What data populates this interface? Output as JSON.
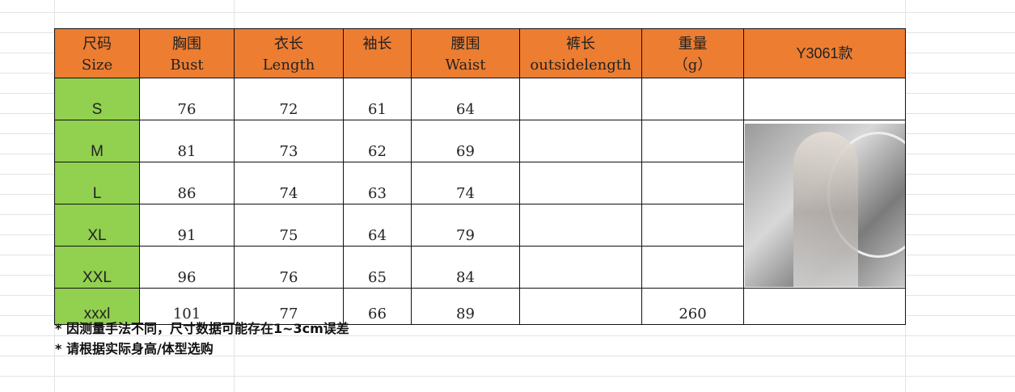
{
  "headers": [
    {
      "zh": "尺码",
      "en": "Size"
    },
    {
      "zh": "胸围",
      "en": "Bust"
    },
    {
      "zh": "衣长",
      "en": "Length"
    },
    {
      "zh": "袖长",
      "en": ""
    },
    {
      "zh": "腰围",
      "en": "Waist"
    },
    {
      "zh": "裤长",
      "en": "outsidelength"
    },
    {
      "zh": "重量",
      "en": "（g）"
    },
    {
      "zh": "Y3061款",
      "en": ""
    }
  ],
  "rows": [
    {
      "size": "S",
      "bust": "76",
      "length": "72",
      "sleeve": "61",
      "waist": "64",
      "outside": "",
      "weight": ""
    },
    {
      "size": "M",
      "bust": "81",
      "length": "73",
      "sleeve": "62",
      "waist": "69",
      "outside": "",
      "weight": ""
    },
    {
      "size": "L",
      "bust": "86",
      "length": "74",
      "sleeve": "63",
      "waist": "74",
      "outside": "",
      "weight": ""
    },
    {
      "size": "XL",
      "bust": "91",
      "length": "75",
      "sleeve": "64",
      "waist": "79",
      "outside": "",
      "weight": ""
    },
    {
      "size": "XXL",
      "bust": "96",
      "length": "76",
      "sleeve": "65",
      "waist": "84",
      "outside": "",
      "weight": ""
    },
    {
      "size": "xxxl",
      "bust": "101",
      "length": "77",
      "sleeve": "66",
      "waist": "89",
      "outside": "",
      "weight": "260"
    }
  ],
  "notes": [
    "* 因测量手法不同，尺寸数据可能存在1~3cm误差",
    "* 请根据实际身高/体型选购"
  ],
  "colors": {
    "header": "#ed7d31",
    "size_column": "#92d050"
  }
}
